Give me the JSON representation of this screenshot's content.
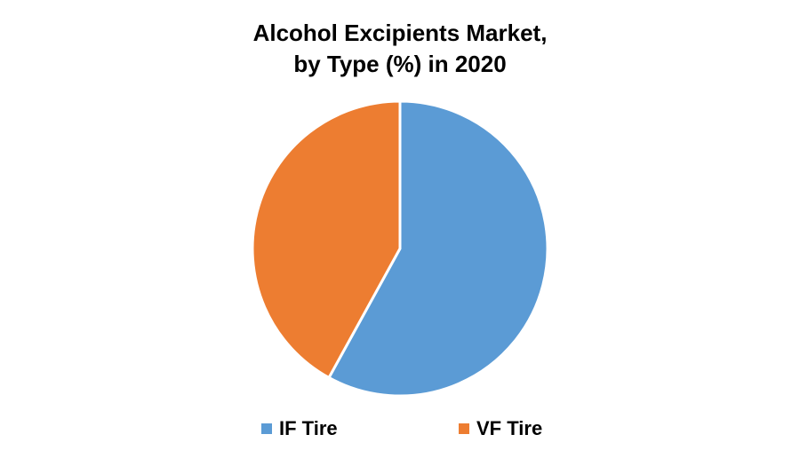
{
  "chart_data": {
    "type": "pie",
    "title": [
      "Alcohol Excipients Market,",
      "by Type (%) in 2020"
    ],
    "categories": [
      "IF Tire",
      "VF Tire"
    ],
    "values": [
      58,
      42
    ],
    "colors": [
      "#5b9bd5",
      "#ed7d31"
    ],
    "legend_position": "bottom"
  }
}
